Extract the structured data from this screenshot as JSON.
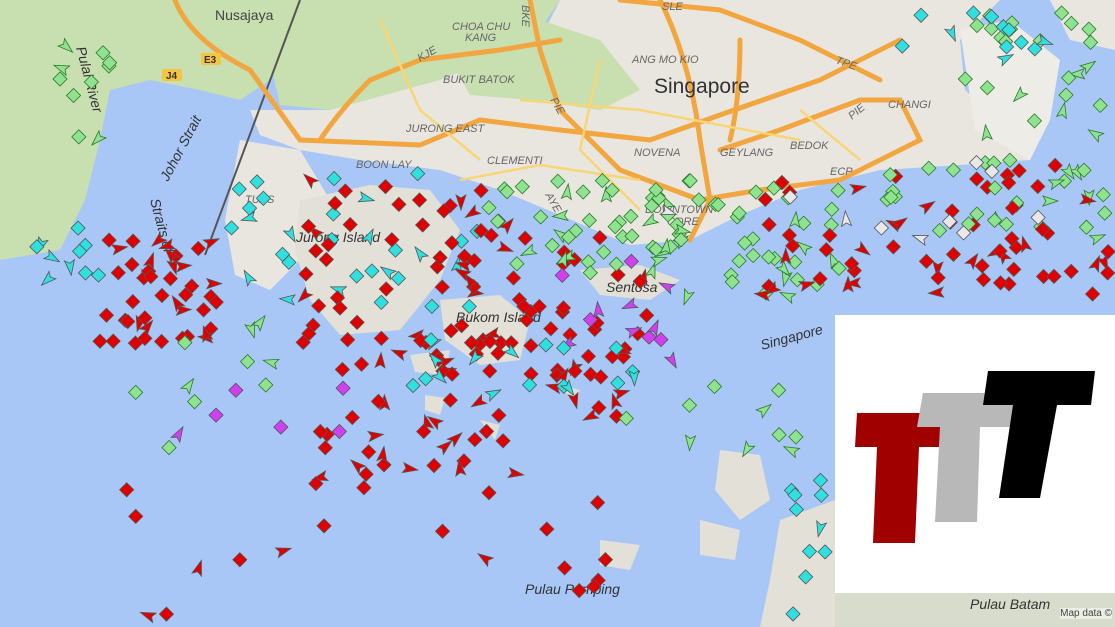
{
  "map": {
    "labels": {
      "nusajaya": "Nusajaya",
      "choa_chu_kang": "CHOA CHU",
      "choa_chu_kang2": "KANG",
      "bukit_batok": "BUKIT BATOK",
      "jurong_east": "JURONG EAST",
      "clementi": "CLEMENTI",
      "boon_lay": "BOON LAY",
      "tuas": "TUAS",
      "ang_mo_kio": "ANG MO KIO",
      "singapore": "Singapore",
      "novena": "NOVENA",
      "geylang": "GEYLANG",
      "bedok": "BEDOK",
      "changi": "CHANGI",
      "downtown": "DOWNTOWN",
      "core": "CORE",
      "jurong_island": "Jurong Island",
      "bukom_island": "Bukom Island",
      "sentosa": "Sentosa",
      "pulau_pemping": "Pulau Pemping",
      "pulau_batam": "Pulau Batam",
      "johor_strait": "Johor Strait",
      "straits_of": "Straits of",
      "pulai_river": "Pulai River",
      "singapore_strait": "Singapore"
    },
    "road_shields": {
      "e3": "E3",
      "j4": "J4",
      "kje": "KJE",
      "bke": "BKE",
      "sle": "SLE",
      "tpe": "TPE",
      "pie": "PIE",
      "pie2": "PIE",
      "aye": "AYE",
      "ecp": "ECP"
    },
    "attribution": "Map data ©"
  },
  "vessel_colors": {
    "tanker": "#e00000",
    "cargo": "#8fe28f",
    "tug_special": "#2fe0e0",
    "passenger": "#3030d0",
    "pleasure": "#d040f0",
    "high_speed": "#f0e020",
    "unknown": "#e8e8e8",
    "fishing": "#f0a0a0"
  },
  "logo": {
    "colors": [
      "#a00000",
      "#b8b8b8",
      "#000000"
    ]
  },
  "colors": {
    "water": "#a9c7f6",
    "land": "#e9e6df",
    "green": "#c8dfb0",
    "highway": "#f2a640",
    "road": "#f8d675"
  }
}
